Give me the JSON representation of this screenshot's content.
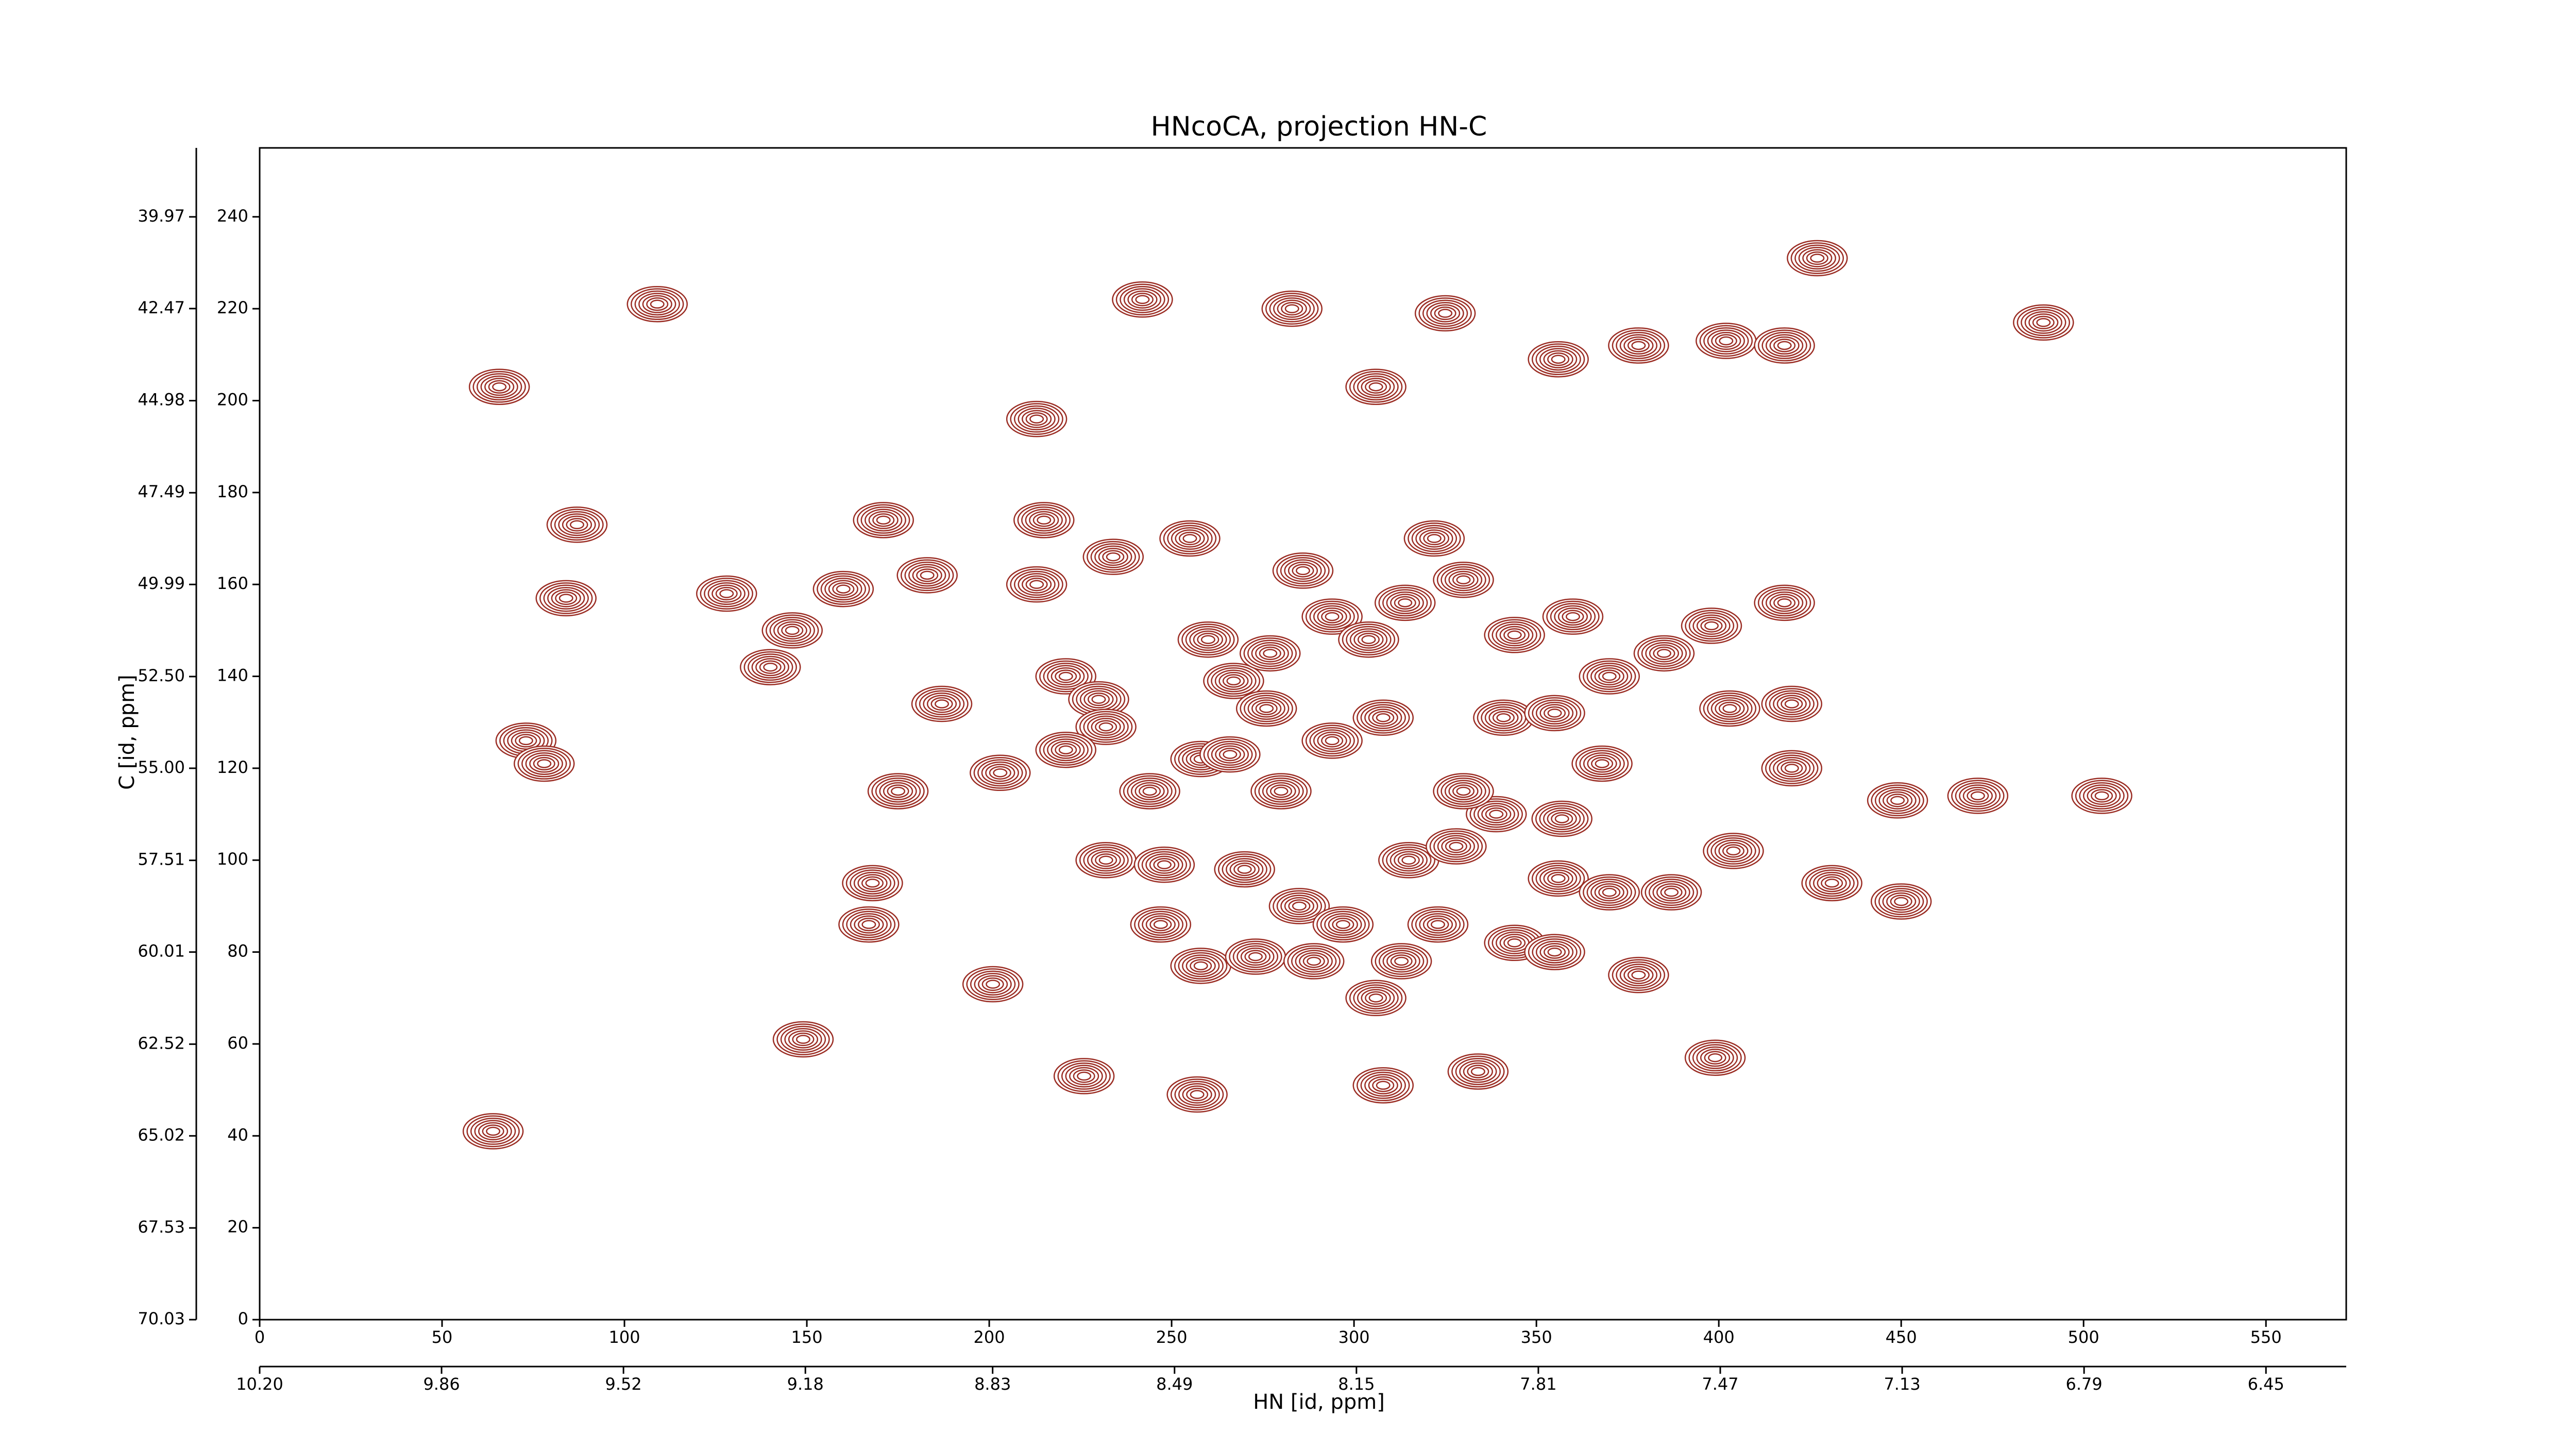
{
  "chart_data": {
    "type": "contour",
    "title": "HNcoCA, projection HN-C",
    "x_label": "HN [id, ppm]",
    "y_label": "C [id, ppm]",
    "color": "#9b2d24",
    "xlim": [
      0,
      572
    ],
    "xticks": [
      0,
      50,
      100,
      150,
      200,
      250,
      300,
      350,
      400,
      450,
      500,
      550
    ],
    "ylim": [
      0,
      255
    ],
    "yticks": [
      0,
      20,
      40,
      60,
      80,
      100,
      120,
      140,
      160,
      180,
      200,
      220,
      240
    ],
    "x2lim": [
      10.2,
      6.3
    ],
    "x2ticks": [
      {
        "value": 10.2,
        "label": "10.20"
      },
      9.86,
      9.52,
      9.18,
      8.83,
      8.49,
      8.15,
      7.81,
      7.47,
      7.13,
      6.79,
      6.45
    ],
    "y2lim": [
      70.03,
      38.09
    ],
    "y2ticks": [
      70.03,
      67.53,
      65.02,
      62.52,
      60.01,
      57.51,
      {
        "value": 55,
        "label": "55.00"
      },
      {
        "value": 52.5,
        "label": "52.50"
      },
      49.99,
      47.49,
      44.98,
      42.47,
      39.97
    ],
    "x": [
      65.7,
      109,
      427,
      489,
      242,
      283,
      325,
      356,
      378,
      402,
      418,
      306,
      213,
      87,
      84,
      128,
      160,
      171,
      183,
      146,
      140,
      73,
      78,
      175,
      187,
      203,
      215,
      213,
      234,
      255,
      260,
      221,
      230,
      232,
      221,
      244,
      258,
      267,
      277,
      286,
      294,
      304,
      314,
      322,
      330,
      344,
      360,
      370,
      385,
      398,
      418,
      403,
      420,
      420,
      341,
      355,
      368,
      339,
      357,
      330,
      308,
      294,
      276,
      266,
      280,
      232,
      248,
      270,
      285,
      297,
      315,
      328,
      323,
      356,
      370,
      387,
      344,
      355,
      378,
      404,
      431,
      449,
      471,
      505,
      450,
      247,
      258,
      273,
      289,
      313,
      306,
      201,
      168,
      167,
      149,
      334,
      308,
      226,
      257,
      399,
      64
    ],
    "y": [
      203,
      221,
      231,
      217,
      222,
      220,
      219,
      209,
      212,
      213,
      212,
      203,
      196,
      173,
      157,
      158,
      159,
      174,
      162,
      150,
      142,
      126,
      121,
      115,
      134,
      119,
      174,
      160,
      166,
      170,
      148,
      140,
      135,
      129,
      124,
      115,
      122,
      139,
      145,
      163,
      153,
      148,
      156,
      170,
      161,
      149,
      153,
      140,
      145,
      151,
      156,
      133,
      134,
      120,
      131,
      132,
      121,
      110,
      109,
      115,
      131,
      126,
      133,
      123,
      115,
      100,
      99,
      98,
      90,
      86,
      100,
      103,
      86,
      96,
      93,
      93,
      82,
      80,
      75,
      102,
      95,
      113,
      114,
      114,
      91,
      86,
      77,
      79,
      78,
      78,
      70,
      73,
      95,
      86,
      61,
      54,
      51,
      53,
      49,
      57,
      41
    ]
  }
}
